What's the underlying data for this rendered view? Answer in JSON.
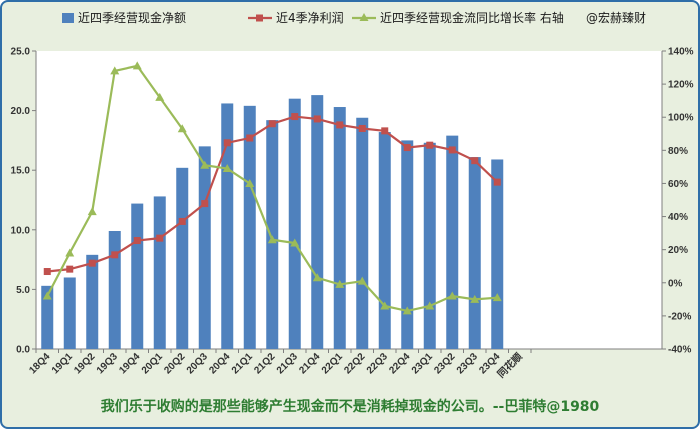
{
  "chart_data": {
    "type": "bar",
    "categories": [
      "18Q4",
      "19Q1",
      "19Q2",
      "19Q3",
      "19Q4",
      "20Q1",
      "20Q2",
      "20Q3",
      "20Q4",
      "21Q1",
      "21Q2",
      "21Q3",
      "21Q4",
      "22Q1",
      "22Q2",
      "22Q3",
      "22Q4",
      "23Q1",
      "23Q2",
      "23Q3",
      "23Q4"
    ],
    "series": [
      {
        "name": "近四季经营现金净额",
        "type": "bar",
        "axis": "left",
        "color": "#4f81bd",
        "values": [
          5.3,
          6.0,
          7.9,
          9.9,
          12.2,
          12.8,
          15.2,
          17.0,
          20.6,
          20.4,
          19.2,
          21.0,
          21.3,
          20.3,
          19.4,
          18.2,
          17.5,
          17.3,
          17.9,
          16.1,
          15.9
        ]
      },
      {
        "name": "近4季净利润",
        "type": "line",
        "axis": "left",
        "color": "#c0504d",
        "marker": "square",
        "values": [
          6.5,
          6.7,
          7.2,
          7.9,
          9.1,
          9.3,
          10.7,
          12.2,
          17.3,
          17.7,
          18.9,
          19.5,
          19.3,
          18.8,
          18.5,
          18.3,
          16.9,
          17.1,
          16.7,
          15.8,
          14.0
        ]
      },
      {
        "name": "近四季经营现金流同比增长率 右轴",
        "type": "line",
        "axis": "right",
        "color": "#9bbb59",
        "marker": "triangle",
        "values": [
          -8,
          18,
          43,
          128,
          131,
          112,
          93,
          71,
          69,
          60,
          26,
          24,
          3,
          -1,
          1,
          -14,
          -17,
          -14,
          -8,
          -10,
          -9
        ]
      }
    ],
    "y_left": {
      "min": 0,
      "max": 25,
      "step": 5,
      "ticks": [
        "0.0",
        "5.0",
        "10.0",
        "15.0",
        "20.0",
        "25.0"
      ]
    },
    "y_right": {
      "min": -40,
      "max": 140,
      "step": 20,
      "ticks": [
        "-40%",
        "-20%",
        "0%",
        "20%",
        "40%",
        "60%",
        "80%",
        "100%",
        "120%",
        "140%"
      ]
    },
    "extra_x_label": "同花顺",
    "legend_position": "top",
    "watermark_text": "@宏赫臻财",
    "grid": false
  },
  "footer": {
    "text": "我们乐于收购的是那些能够产生现金而不是消耗掉现金的公司。--巴菲特@1980"
  }
}
